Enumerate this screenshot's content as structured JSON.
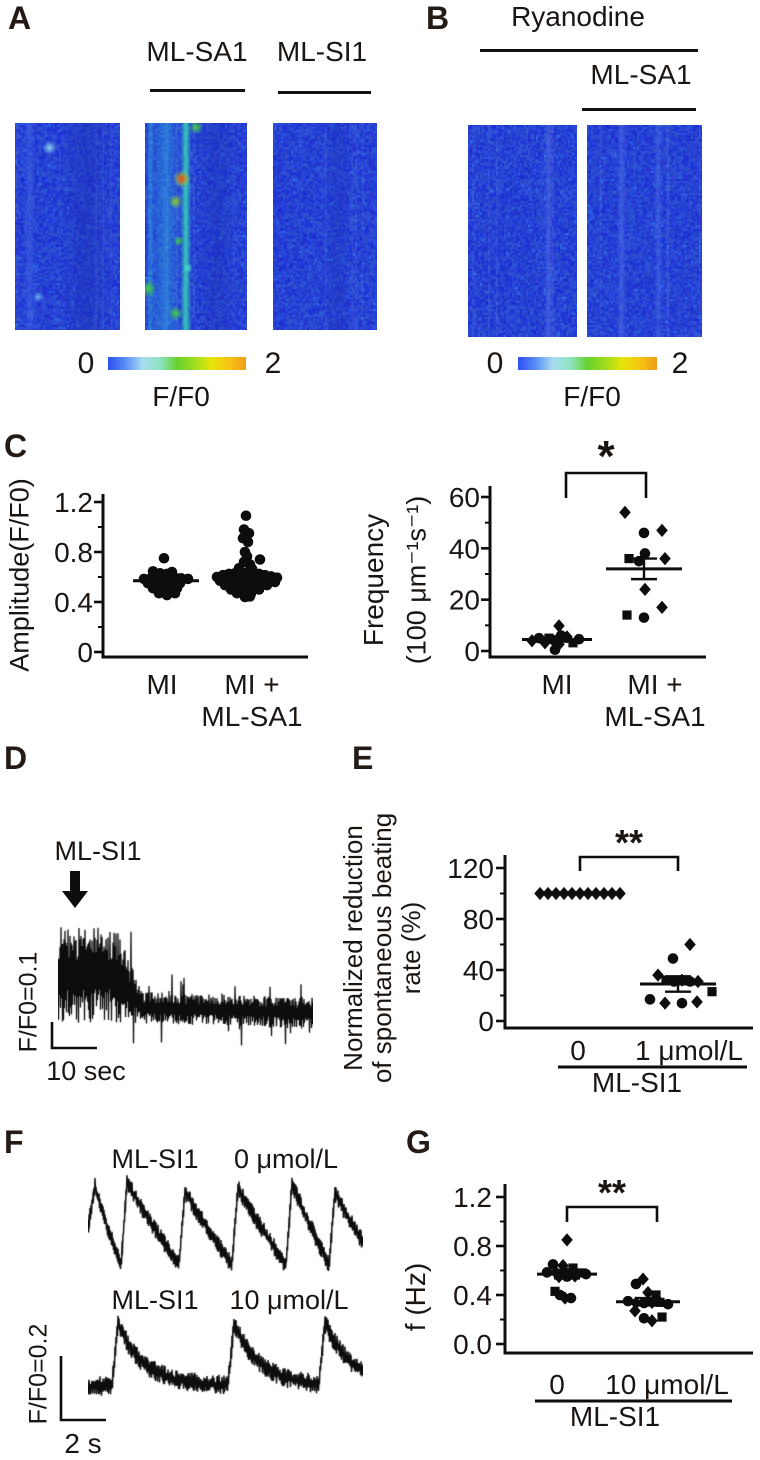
{
  "figure_text": {
    "panelA": {
      "letter": "A",
      "treatment1": "ML-SA1",
      "treatment2": "ML-SI1",
      "colorbar_min": "0",
      "colorbar_max": "2",
      "colorbar_label": "F/F0"
    },
    "panelB": {
      "letter": "B",
      "treatment1": "Ryanodine",
      "treatment2": "ML-SA1",
      "colorbar_min": "0",
      "colorbar_max": "2",
      "colorbar_label": "F/F0"
    },
    "panelC": {
      "letter": "C"
    },
    "panelD": {
      "letter": "D",
      "stimulus": "ML-SI1",
      "scale_vertical": "F/F0=0.1",
      "scale_horizontal": "10 sec"
    },
    "panelE": {
      "letter": "E"
    },
    "panelF": {
      "letter": "F",
      "trace1_drug": "ML-SI1",
      "trace1_dose": "0 μmol/L",
      "trace2_drug": "ML-SI1",
      "trace2_dose": "10 μmol/L",
      "scale_vertical": "F/F0=0.2",
      "scale_horizontal": "2 s"
    },
    "panelG": {
      "letter": "G"
    }
  },
  "colors": {
    "text": "#1b1512",
    "micrograph_base": "#2742d4",
    "colorbar_gradient": [
      "#2b4ff2",
      "#5b8ef5",
      "#a8dcf0",
      "#8fe3c0",
      "#67d22e",
      "#9fdc1e",
      "#e8e40a",
      "#f5c312",
      "#ef9c1c"
    ]
  },
  "chart_data": [
    {
      "id": "amplitude",
      "type": "scatter",
      "title": "",
      "ylabel": "Amplitude(F/F0)",
      "ylim": [
        0,
        1.3
      ],
      "yticks": [
        0,
        0.4,
        0.8,
        1.2
      ],
      "ytick_labels": [
        "0",
        "0.4",
        "0.8",
        "1.2"
      ],
      "minor_ticks": [
        0.2,
        0.6,
        1.0
      ],
      "categories": [
        "MI",
        "MI + ML-SA1"
      ],
      "category_lines": [
        [
          "MI"
        ],
        [
          "MI +",
          "ML-SA1"
        ]
      ],
      "significance": null,
      "groups": [
        {
          "name": "MI",
          "mean": 0.57,
          "sem": 0.03,
          "marker": "circle",
          "points": [
            [
              -2,
              0.75
            ],
            [
              -13,
              0.645
            ],
            [
              6,
              0.64
            ],
            [
              -6,
              0.63
            ],
            [
              1,
              0.625
            ],
            [
              -22,
              0.585
            ],
            [
              -15,
              0.59
            ],
            [
              -8,
              0.6
            ],
            [
              0,
              0.605
            ],
            [
              8,
              0.6
            ],
            [
              15,
              0.59
            ],
            [
              22,
              0.585
            ],
            [
              -18,
              0.55
            ],
            [
              -10,
              0.555
            ],
            [
              -2,
              0.555
            ],
            [
              6,
              0.555
            ],
            [
              14,
              0.55
            ],
            [
              -13,
              0.51
            ],
            [
              -5,
              0.51
            ],
            [
              3,
              0.51
            ],
            [
              11,
              0.51
            ],
            [
              -7,
              0.47
            ],
            [
              1,
              0.455
            ],
            [
              9,
              0.47
            ]
          ]
        },
        {
          "name": "MI + ML-SA1",
          "mean": 0.59,
          "sem": 0.02,
          "marker": "circle",
          "points": [
            [
              -1,
              1.09
            ],
            [
              -3,
              0.98
            ],
            [
              2,
              0.95
            ],
            [
              -4,
              0.91
            ],
            [
              1,
              0.88
            ],
            [
              13,
              0.74
            ],
            [
              -2,
              0.8
            ],
            [
              0,
              0.765
            ],
            [
              -3,
              0.72
            ],
            [
              3,
              0.7
            ],
            [
              -8,
              0.67
            ],
            [
              5,
              0.665
            ],
            [
              -30,
              0.6
            ],
            [
              -24,
              0.615
            ],
            [
              -18,
              0.625
            ],
            [
              -12,
              0.63
            ],
            [
              -6,
              0.635
            ],
            [
              0,
              0.635
            ],
            [
              6,
              0.63
            ],
            [
              12,
              0.625
            ],
            [
              18,
              0.615
            ],
            [
              24,
              0.605
            ],
            [
              30,
              0.595
            ],
            [
              -27,
              0.57
            ],
            [
              -20,
              0.575
            ],
            [
              -13,
              0.58
            ],
            [
              -6,
              0.58
            ],
            [
              1,
              0.58
            ],
            [
              8,
              0.58
            ],
            [
              15,
              0.575
            ],
            [
              22,
              0.57
            ],
            [
              28,
              0.56
            ],
            [
              -22,
              0.535
            ],
            [
              -15,
              0.54
            ],
            [
              -8,
              0.54
            ],
            [
              -1,
              0.54
            ],
            [
              6,
              0.54
            ],
            [
              13,
              0.54
            ],
            [
              20,
              0.535
            ],
            [
              -16,
              0.5
            ],
            [
              -9,
              0.505
            ],
            [
              -2,
              0.505
            ],
            [
              5,
              0.505
            ],
            [
              12,
              0.5
            ],
            [
              -10,
              0.47
            ],
            [
              -3,
              0.465
            ],
            [
              4,
              0.47
            ],
            [
              -2,
              0.44
            ],
            [
              3,
              0.445
            ]
          ]
        }
      ]
    },
    {
      "id": "frequency",
      "type": "scatter",
      "title": "",
      "ylabel_lines": [
        "Frequency",
        "(100 μm⁻¹s⁻¹)"
      ],
      "ylim": [
        0,
        63
      ],
      "yticks": [
        0,
        20,
        40,
        60
      ],
      "ytick_labels": [
        "0",
        "20",
        "40",
        "60"
      ],
      "minor_ticks": [
        10,
        30,
        50
      ],
      "categories": [
        "MI",
        "MI + ML-SA1"
      ],
      "category_lines": [
        [
          "MI"
        ],
        [
          "MI +",
          "ML-SA1"
        ]
      ],
      "significance": {
        "label": "*",
        "between": [
          0,
          1
        ]
      },
      "groups": [
        {
          "name": "MI",
          "mean": 4.5,
          "sem": 0.8,
          "marker": "mixed",
          "points": [
            [
              -25,
              4
            ],
            [
              -18,
              5
            ],
            [
              -12,
              3.2
            ],
            [
              -8,
              5
            ],
            [
              -3,
              4.2
            ],
            [
              2,
              2.6
            ],
            [
              4,
              6
            ],
            [
              10,
              5.5
            ],
            [
              16,
              3.2
            ],
            [
              22,
              4.6
            ],
            [
              2,
              9.8
            ],
            [
              -2,
              0.5
            ]
          ]
        },
        {
          "name": "MI + ML-SA1",
          "mean": 32,
          "sem": 4,
          "marker": "mixed",
          "points": [
            [
              -19,
              54
            ],
            [
              0,
              46
            ],
            [
              18,
              47
            ],
            [
              -15,
              36
            ],
            [
              1,
              38
            ],
            [
              21,
              36
            ],
            [
              -5,
              35
            ],
            [
              1,
              24
            ],
            [
              -17,
              14
            ],
            [
              0,
              13
            ],
            [
              18,
              17
            ]
          ]
        }
      ]
    },
    {
      "id": "beating_rate",
      "type": "scatter",
      "title": "",
      "ylabel_lines": [
        "Normalized reduction",
        "of spontaneous beating",
        "rate (%)"
      ],
      "ylim": [
        0,
        126
      ],
      "yticks": [
        0,
        40,
        80,
        120
      ],
      "ytick_labels": [
        "0",
        "40",
        "80",
        "120"
      ],
      "minor_ticks": [
        20,
        60,
        100
      ],
      "categories": [
        "0",
        "1 μmol/L"
      ],
      "group_label": "ML-SI1",
      "significance": {
        "label": "**",
        "between": [
          0,
          1
        ]
      },
      "groups": [
        {
          "name": "0",
          "mean": 100,
          "sem": 0,
          "show_mean": false,
          "marker": "diamond",
          "points": [
            [
              -41,
              100
            ],
            [
              -33,
              100
            ],
            [
              -25,
              100
            ],
            [
              -17,
              100
            ],
            [
              -9,
              100
            ],
            [
              -1,
              100
            ],
            [
              7,
              100
            ],
            [
              15,
              100
            ],
            [
              23,
              100
            ],
            [
              31,
              100
            ],
            [
              39,
              100
            ]
          ]
        },
        {
          "name": "1 μmol/L",
          "mean": 29,
          "sem": 6,
          "marker": "mixed",
          "points": [
            [
              12,
              60
            ],
            [
              -5,
              49
            ],
            [
              -20,
              36
            ],
            [
              -12,
              32
            ],
            [
              -4,
              31
            ],
            [
              4,
              32
            ],
            [
              12,
              31
            ],
            [
              20,
              31
            ],
            [
              34,
              23
            ],
            [
              -28,
              17
            ],
            [
              -13,
              14
            ],
            [
              4,
              14
            ],
            [
              19,
              15
            ]
          ]
        }
      ]
    },
    {
      "id": "f_hz",
      "type": "scatter",
      "title": "",
      "ylabel": "f (Hz)",
      "ylim": [
        0,
        1.26
      ],
      "yticks": [
        0,
        0.4,
        0.8,
        1.2
      ],
      "ytick_labels": [
        "0.0",
        "0.4",
        "0.8",
        "1.2"
      ],
      "minor_ticks": [
        0.2,
        0.6,
        1.0
      ],
      "categories": [
        "0",
        "10 μmol/L"
      ],
      "group_label": "ML-SI1",
      "significance": {
        "label": "**",
        "between": [
          0,
          1
        ]
      },
      "groups": [
        {
          "name": "0",
          "mean": 0.57,
          "sem": 0.035,
          "marker": "mixed",
          "points": [
            [
              0,
              0.85
            ],
            [
              -14,
              0.65
            ],
            [
              -4,
              0.64
            ],
            [
              6,
              0.62
            ],
            [
              -20,
              0.585
            ],
            [
              -11,
              0.585
            ],
            [
              -2,
              0.585
            ],
            [
              7,
              0.585
            ],
            [
              15,
              0.58
            ],
            [
              19,
              0.57
            ],
            [
              -8,
              0.55
            ],
            [
              0,
              0.55
            ],
            [
              8,
              0.555
            ],
            [
              -12,
              0.43
            ],
            [
              -7,
              0.4
            ],
            [
              -2,
              0.375
            ],
            [
              4,
              0.375
            ]
          ]
        },
        {
          "name": "10 μmol/L",
          "mean": 0.345,
          "sem": 0.03,
          "marker": "mixed",
          "points": [
            [
              -5,
              0.53
            ],
            [
              -12,
              0.49
            ],
            [
              0,
              0.42
            ],
            [
              8,
              0.4
            ],
            [
              -20,
              0.35
            ],
            [
              -12,
              0.335
            ],
            [
              -4,
              0.335
            ],
            [
              4,
              0.34
            ],
            [
              12,
              0.34
            ],
            [
              20,
              0.325
            ],
            [
              -13,
              0.27
            ],
            [
              -4,
              0.21
            ],
            [
              4,
              0.19
            ],
            [
              14,
              0.22
            ]
          ]
        }
      ]
    },
    {
      "id": "ca_trace_mlsi1",
      "type": "line",
      "stimulus_label": "ML-SI1",
      "description": "Ca2+ fluorescence trace: high-amplitude fast oscillations at ML-SI1 application decaying to a low-amplitude noisy baseline",
      "scale_bar": {
        "vertical": "F/F0=0.1",
        "horizontal": "10 sec"
      },
      "gen": {
        "seed": 1234,
        "burst_end": 58,
        "burst_center": 70,
        "burst_amp": 48,
        "base_center": 100,
        "base_amp": 16,
        "drift": 8,
        "spike_prob": 0.045,
        "spike_gain": 2.2
      }
    },
    {
      "id": "beating_traces",
      "type": "line",
      "scale_bar": {
        "vertical": "F/F0=0.2",
        "horizontal": "2 s"
      },
      "traces": [
        {
          "drug": "ML-SI1",
          "dose": "0 μmol/L",
          "beats_shown": 6,
          "gen": {
            "seed": 77,
            "peaks_x": [
              7,
              39,
              97,
              150,
              204,
              247
            ],
            "top": 8,
            "base": 92,
            "rise": 6,
            "noise": 7
          }
        },
        {
          "drug": "ML-SI1",
          "dose": "10 μmol/L",
          "beats_shown": 3,
          "gen": {
            "seed": 99,
            "peaks_x": [
              30,
              146,
              237
            ],
            "top": 12,
            "base": 74,
            "amp": 62,
            "tau": 26,
            "rise": 6,
            "noise": 8
          }
        }
      ]
    }
  ],
  "micrographs": {
    "A": [
      {
        "seed": 3,
        "streaks": [
          {
            "p": 0.14,
            "w": 0.12,
            "c": "#4a6ce8",
            "a": 0.45
          },
          {
            "p": 0.68,
            "w": 0.5,
            "c": "#1c2fae",
            "a": 0.4
          }
        ],
        "spots": [
          {
            "px": 0.33,
            "py": 0.12,
            "r": 4,
            "c": "#8fd8f2"
          },
          {
            "px": 0.22,
            "py": 0.84,
            "r": 3,
            "c": "#6ab8ee"
          }
        ]
      },
      {
        "seed": 5,
        "streaks": [
          {
            "p": 0.2,
            "w": 0.34,
            "c": "#2fb9de",
            "a": 0.45
          },
          {
            "p": 0.4,
            "w": 0.11,
            "c": "#39e0b2",
            "a": 0.85
          },
          {
            "p": 0.05,
            "w": 0.08,
            "c": "#35c8e0",
            "a": 0.4
          },
          {
            "p": 0.7,
            "w": 0.4,
            "c": "#1c2fae",
            "a": 0.32
          }
        ],
        "spots": [
          {
            "px": 0.5,
            "py": 0.02,
            "r": 4,
            "c": "#42d838"
          },
          {
            "px": 0.36,
            "py": 0.27,
            "r": 3.5,
            "c": "#e84410",
            "halo": "#b8e020"
          },
          {
            "px": 0.3,
            "py": 0.38,
            "r": 4,
            "c": "#8fd820"
          },
          {
            "px": 0.33,
            "py": 0.57,
            "r": 3,
            "c": "#42d838"
          },
          {
            "px": 0.42,
            "py": 0.7,
            "r": 3,
            "c": "#45e0c8"
          },
          {
            "px": 0.03,
            "py": 0.8,
            "r": 5,
            "c": "#42d838"
          },
          {
            "px": 0.3,
            "py": 0.92,
            "r": 4,
            "c": "#42d838"
          }
        ]
      },
      {
        "seed": 8,
        "streaks": [
          {
            "p": 0.62,
            "w": 0.25,
            "c": "#1d31b4",
            "a": 0.32
          }
        ],
        "spots": []
      }
    ],
    "B": [
      {
        "seed": 13,
        "streaks": [
          {
            "p": 0.74,
            "w": 0.09,
            "c": "#5a7ae8",
            "a": 0.5
          }
        ],
        "spots": []
      },
      {
        "seed": 21,
        "streaks": [
          {
            "p": 0.3,
            "w": 0.08,
            "c": "#5a7ae8",
            "a": 0.45
          },
          {
            "p": 0.62,
            "w": 0.07,
            "c": "#5a7ae8",
            "a": 0.4
          }
        ],
        "spots": []
      }
    ]
  }
}
